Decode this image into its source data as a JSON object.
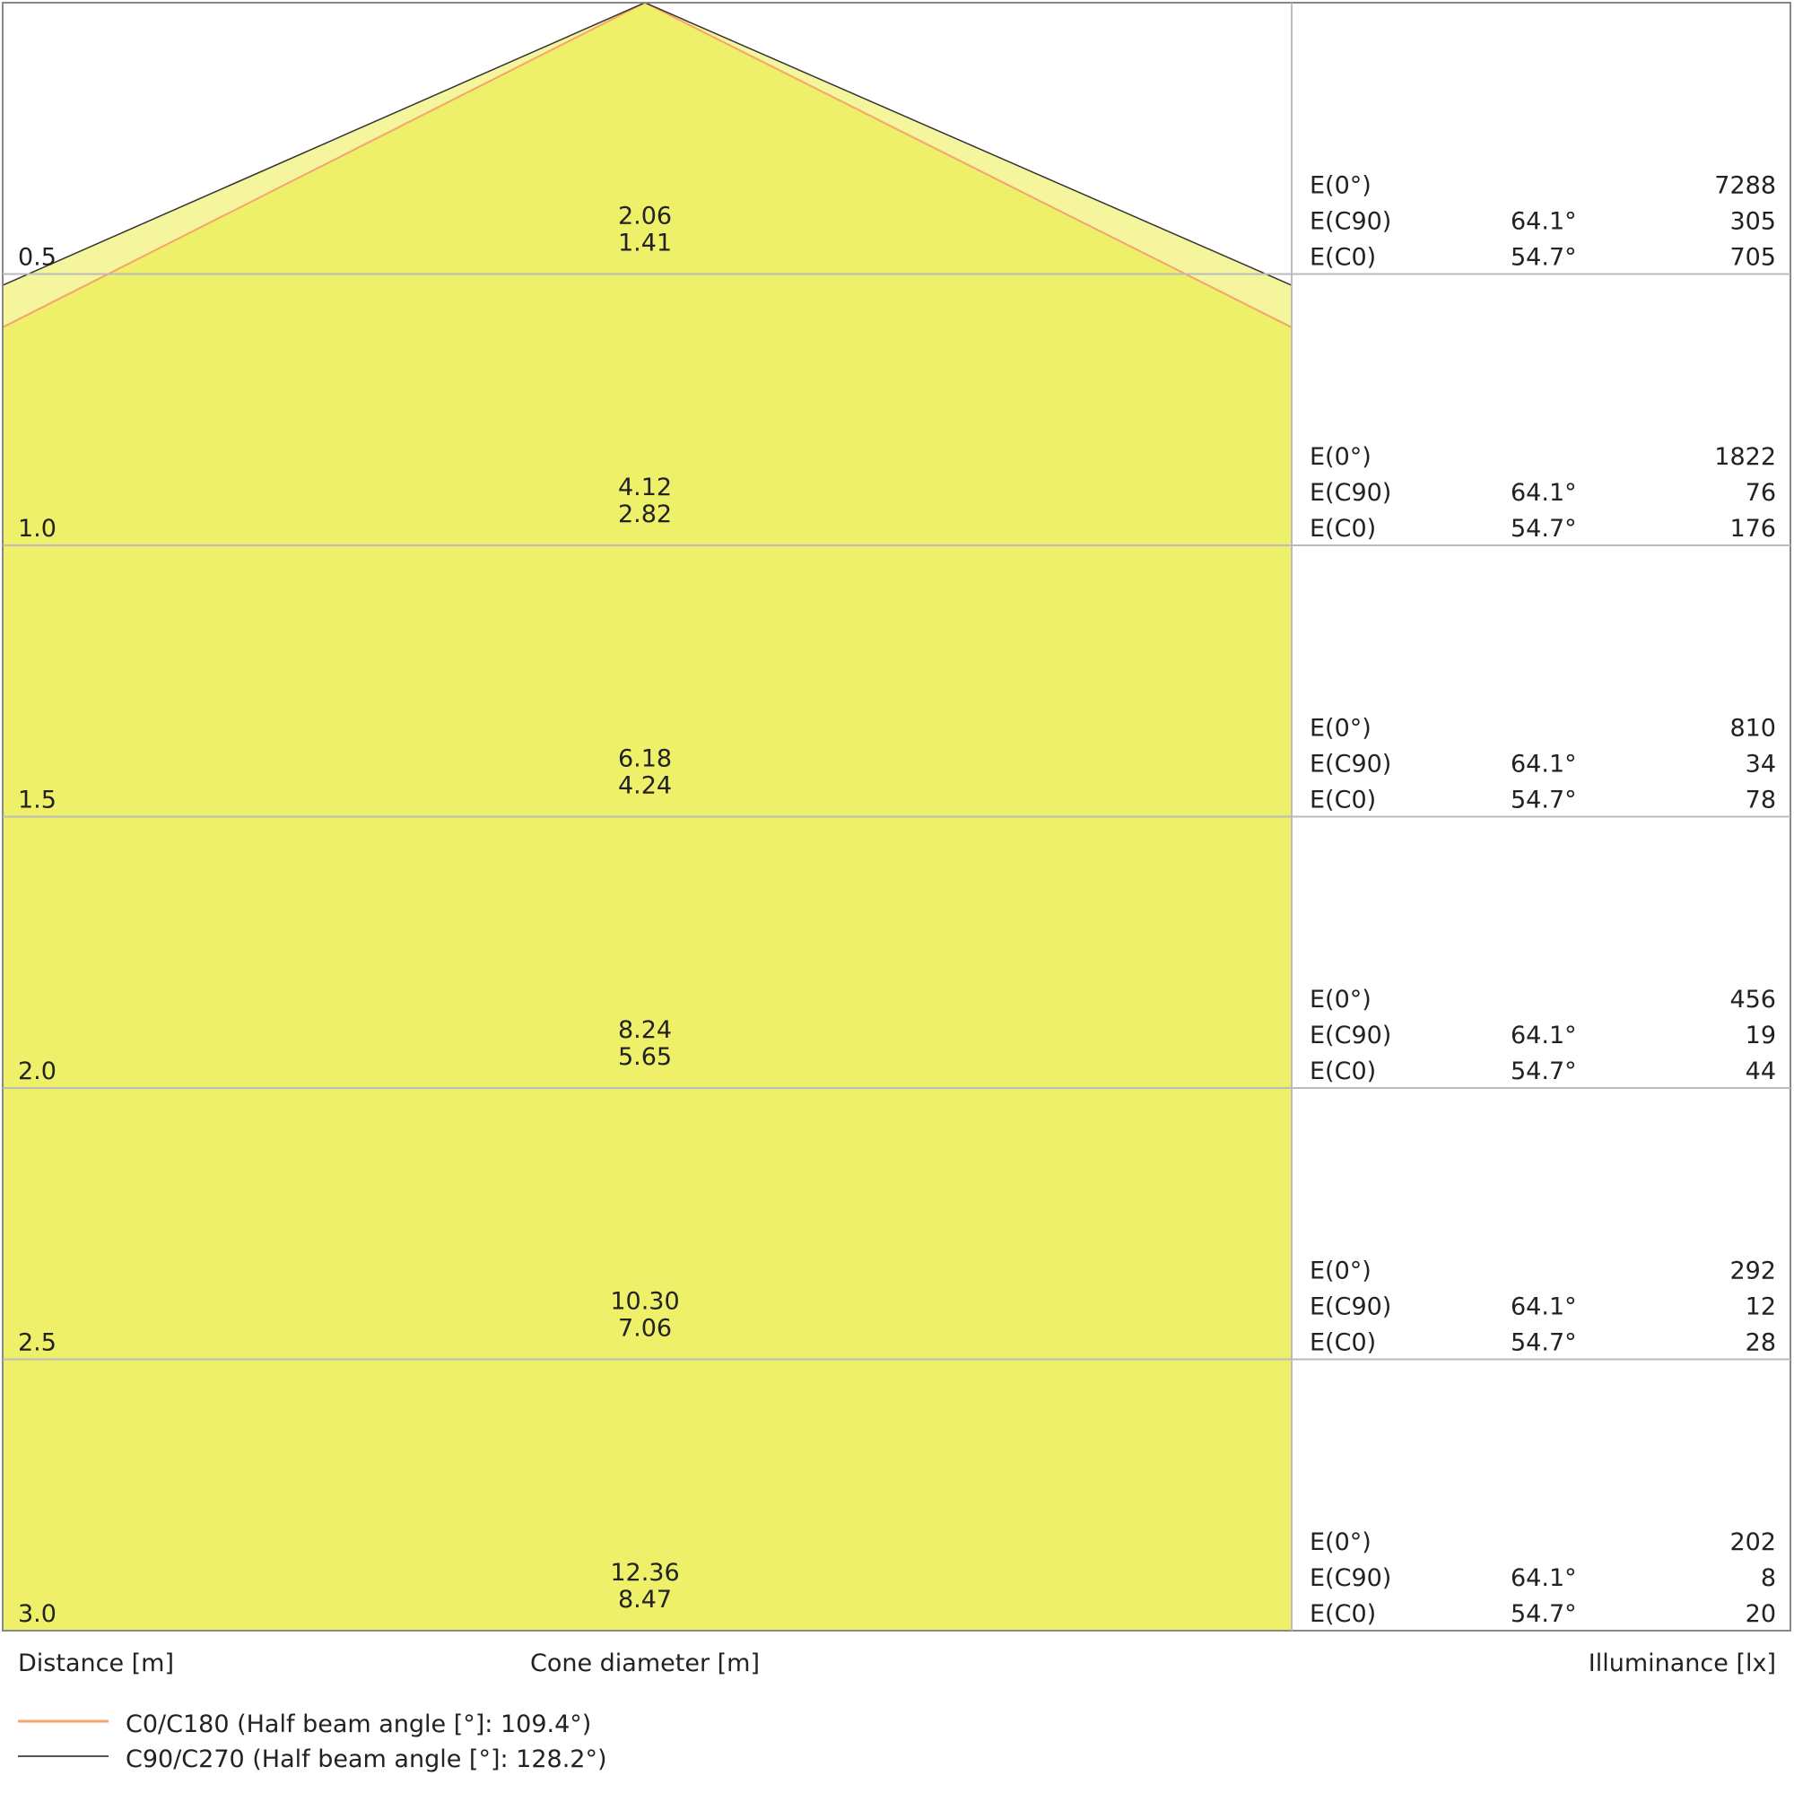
{
  "chart_data": {
    "type": "cone-diagram",
    "colors": {
      "cone_c90_fill": "#f4f59c",
      "cone_c0_fill": "#eff06a",
      "c0_line": "#f5a56c",
      "c90_line": "#333333",
      "grid": "#bbbbbb"
    },
    "half_beam_angles_deg": {
      "C0": 109.4,
      "C90": 128.2
    },
    "rows": [
      {
        "distance": "0.5",
        "cone_c90": "2.06",
        "cone_c0": "1.41",
        "e0": "7288",
        "c90_angle": "64.1°",
        "e_c90": "305",
        "c0_angle": "54.7°",
        "e_c0": "705"
      },
      {
        "distance": "1.0",
        "cone_c90": "4.12",
        "cone_c0": "2.82",
        "e0": "1822",
        "c90_angle": "64.1°",
        "e_c90": "76",
        "c0_angle": "54.7°",
        "e_c0": "176"
      },
      {
        "distance": "1.5",
        "cone_c90": "6.18",
        "cone_c0": "4.24",
        "e0": "810",
        "c90_angle": "64.1°",
        "e_c90": "34",
        "c0_angle": "54.7°",
        "e_c0": "78"
      },
      {
        "distance": "2.0",
        "cone_c90": "8.24",
        "cone_c0": "5.65",
        "e0": "456",
        "c90_angle": "64.1°",
        "e_c90": "19",
        "c0_angle": "54.7°",
        "e_c0": "44"
      },
      {
        "distance": "2.5",
        "cone_c90": "10.30",
        "cone_c0": "7.06",
        "e0": "292",
        "c90_angle": "64.1°",
        "e_c90": "12",
        "c0_angle": "54.7°",
        "e_c0": "28"
      },
      {
        "distance": "3.0",
        "cone_c90": "12.36",
        "cone_c0": "8.47",
        "e0": "202",
        "c90_angle": "64.1°",
        "e_c90": "8",
        "c0_angle": "54.7°",
        "e_c0": "20"
      }
    ],
    "row_labels": {
      "e0": "E(0°)",
      "e_c90": "E(C90)",
      "e_c0": "E(C0)"
    },
    "axis_labels": {
      "distance": "Distance [m]",
      "cone": "Cone diameter [m]",
      "illuminance": "Illuminance [lx]"
    },
    "legend": [
      {
        "name": "C0/C180 (Half beam angle [°]: 109.4°)",
        "color": "#f5a56c"
      },
      {
        "name": "C90/C270 (Half beam angle [°]: 128.2°)",
        "color": "#555555"
      }
    ]
  }
}
